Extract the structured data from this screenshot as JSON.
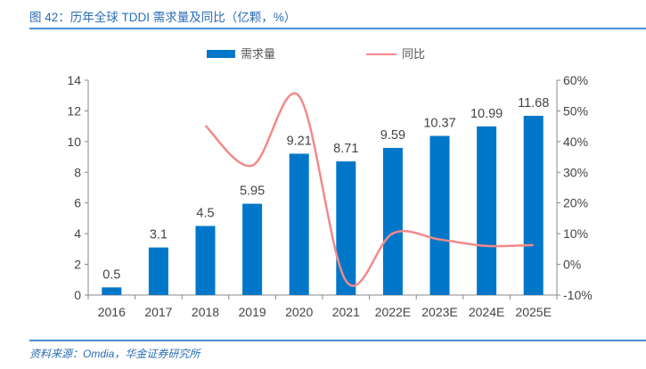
{
  "title": "图 42：历年全球 TDDI 需求量及同比（亿颗，%）",
  "source": "资料来源：Omdia，华金证券研究所",
  "colors": {
    "bar": "#0077c8",
    "line": "#f28a8a",
    "axis": "#888888",
    "title": "#2a6db5"
  },
  "chart_data": {
    "type": "bar",
    "title": "历年全球 TDDI 需求量及同比（亿颗，%）",
    "xlabel": "",
    "ylabel": "",
    "categories": [
      "2016",
      "2017",
      "2018",
      "2019",
      "2020",
      "2021",
      "2022E",
      "2023E",
      "2024E",
      "2025E"
    ],
    "series": [
      {
        "name": "需求量",
        "type": "bar",
        "axis": "left",
        "values": [
          0.5,
          3.1,
          4.5,
          5.95,
          9.21,
          8.71,
          9.59,
          10.37,
          10.99,
          11.68
        ],
        "labels": [
          "0.5",
          "3.1",
          "4.5",
          "5.95",
          "9.21",
          "8.71",
          "9.59",
          "10.37",
          "10.99",
          "11.68"
        ]
      },
      {
        "name": "同比",
        "type": "line",
        "axis": "right",
        "smooth": true,
        "values": [
          null,
          null,
          45.2,
          32.2,
          54.8,
          -5.4,
          10.1,
          8.1,
          6.0,
          6.3
        ]
      }
    ],
    "ylim": [
      0,
      14
    ],
    "yticks": [
      "0",
      "2",
      "4",
      "6",
      "8",
      "10",
      "12",
      "14"
    ],
    "y2lim": [
      -10,
      60
    ],
    "y2ticks": [
      "-10%",
      "0%",
      "10%",
      "20%",
      "30%",
      "40%",
      "50%",
      "60%"
    ],
    "grid": false,
    "legend": {
      "position": "top",
      "items": [
        "需求量",
        "同比"
      ]
    }
  }
}
